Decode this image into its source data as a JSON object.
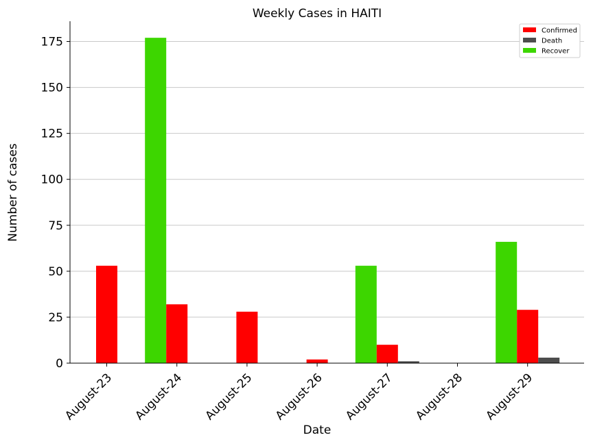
{
  "chart_data": {
    "type": "bar",
    "title": "Weekly Cases in HAITI",
    "xlabel": "Date",
    "ylabel": "Number of cases",
    "categories": [
      "August-23",
      "August-24",
      "August-25",
      "August-26",
      "August-27",
      "August-28",
      "August-29"
    ],
    "series": [
      {
        "name": "Recover",
        "color": "#3dd600",
        "values": [
          0,
          177,
          0,
          0,
          53,
          0,
          66
        ]
      },
      {
        "name": "Confirmed",
        "color": "#ff0000",
        "values": [
          53,
          32,
          28,
          2,
          10,
          0,
          29
        ]
      },
      {
        "name": "Death",
        "color": "#4d4d4d",
        "values": [
          0,
          0,
          0,
          0,
          1,
          0,
          3
        ]
      }
    ],
    "legend_order": [
      "Confirmed",
      "Death",
      "Recover"
    ],
    "ylim": [
      0,
      186
    ],
    "yticks": [
      0,
      25,
      50,
      75,
      100,
      125,
      150,
      175
    ],
    "grid": "y-only",
    "legend_position": "top-right"
  }
}
